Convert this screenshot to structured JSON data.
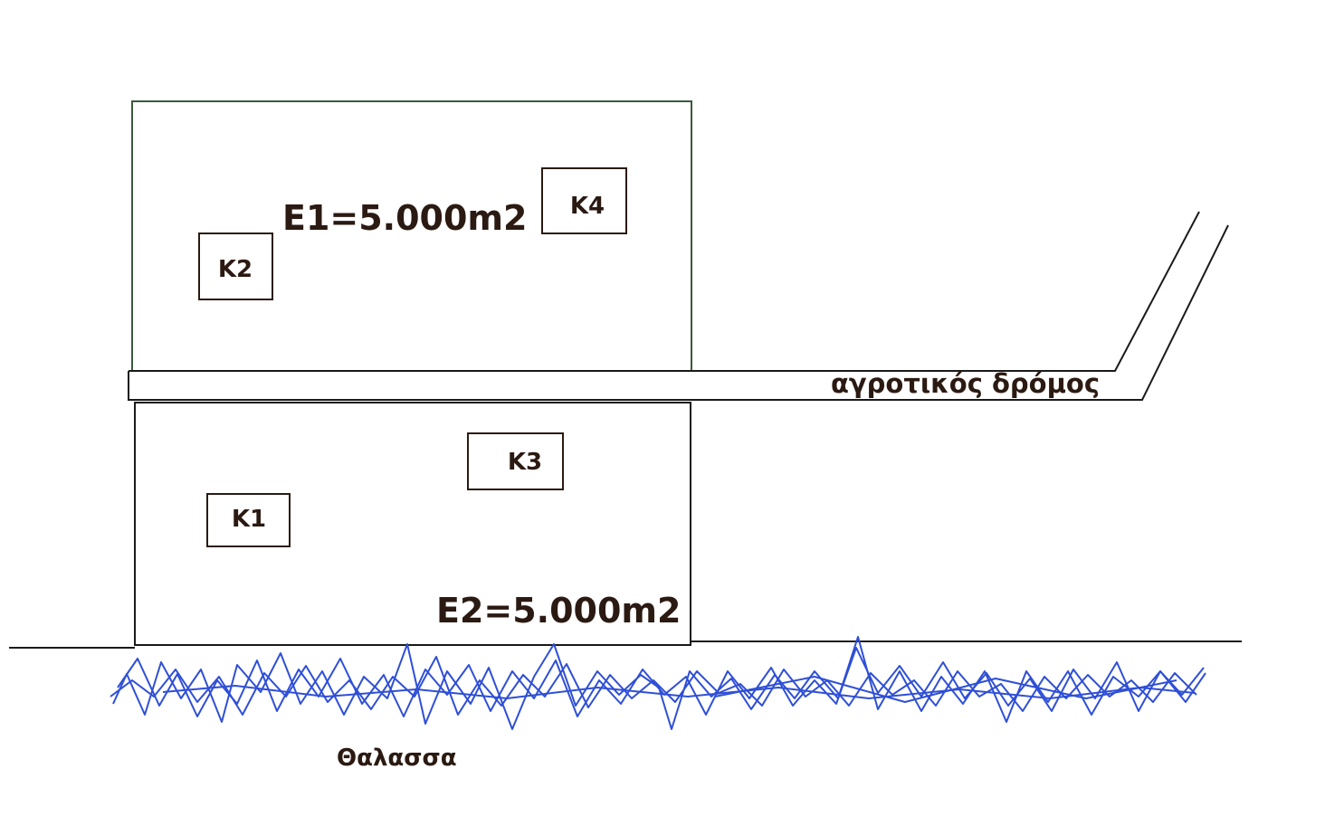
{
  "plots": {
    "e1": {
      "label": "E1=5.000m2"
    },
    "e2": {
      "label": "E2=5.000m2"
    }
  },
  "buildings": {
    "k1": "K1",
    "k2": "K2",
    "k3": "K3",
    "k4": "K4"
  },
  "road": {
    "label": "αγροτικός δρόμος"
  },
  "sea": {
    "label": "Θαλασσα"
  },
  "colors": {
    "plot_e1_border": "#3c5a3c",
    "plot_e2_border": "#1a1a1a",
    "building_border": "#2b1a12",
    "label_text": "#2b1a12",
    "road_line": "#1a1a1a",
    "shoreline": "#1a1a1a",
    "sea_scribble": "#2f4fd6"
  }
}
